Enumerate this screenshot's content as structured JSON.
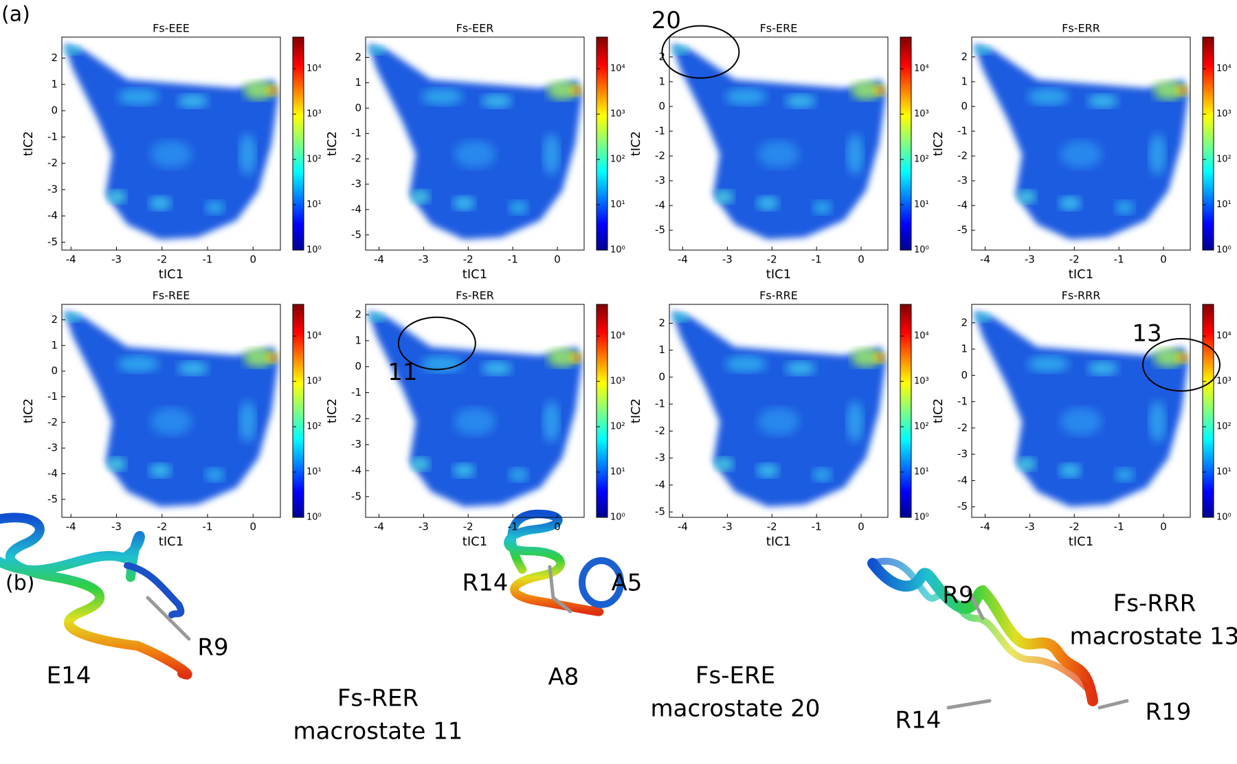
{
  "panel_labels": [
    "(a)",
    "(b)"
  ],
  "chart_data": [
    {
      "type": "hist2d",
      "title": "Fs-EEE",
      "xlabel": "tIC1",
      "ylabel": "tIC2",
      "xlim": [
        -4.2,
        0.6
      ],
      "ylim": [
        -5.3,
        2.8
      ],
      "xticks": [
        -4,
        -3,
        -2,
        -1,
        0
      ],
      "yticks": [
        -5,
        -4,
        -3,
        -2,
        -1,
        0,
        1,
        2
      ],
      "colorbar": {
        "scale": "log",
        "clim": [
          1,
          50000
        ],
        "ticks": [
          {
            "value": 1,
            "label": "10⁰"
          },
          {
            "value": 10,
            "label": "10¹"
          },
          {
            "value": 100,
            "label": "10²"
          },
          {
            "value": 1000,
            "label": "10³"
          },
          {
            "value": 10000,
            "label": "10⁴"
          }
        ]
      }
    },
    {
      "type": "hist2d",
      "title": "Fs-EER",
      "xlabel": "tIC1",
      "ylabel": "tIC2",
      "xlim": [
        -4.3,
        0.6
      ],
      "ylim": [
        -5.6,
        2.8
      ],
      "xticks": [
        -4,
        -3,
        -2,
        -1,
        0
      ],
      "yticks": [
        -5,
        -4,
        -3,
        -2,
        -1,
        0,
        1,
        2
      ],
      "colorbar": {
        "scale": "log",
        "clim": [
          1,
          50000
        ],
        "ticks": [
          {
            "value": 1,
            "label": "10⁰"
          },
          {
            "value": 10,
            "label": "10¹"
          },
          {
            "value": 100,
            "label": "10²"
          },
          {
            "value": 1000,
            "label": "10³"
          },
          {
            "value": 10000,
            "label": "10⁴"
          }
        ]
      }
    },
    {
      "type": "hist2d",
      "title": "Fs-ERE",
      "xlabel": "tIC1",
      "ylabel": "tIC2",
      "xlim": [
        -4.3,
        0.6
      ],
      "ylim": [
        -5.8,
        2.8
      ],
      "xticks": [
        -4,
        -3,
        -2,
        -1,
        0
      ],
      "yticks": [
        -5,
        -4,
        -3,
        -2,
        -1,
        0,
        1,
        2
      ],
      "colorbar": {
        "scale": "log",
        "clim": [
          1,
          50000
        ],
        "ticks": [
          {
            "value": 1,
            "label": "10⁰"
          },
          {
            "value": 10,
            "label": "10¹"
          },
          {
            "value": 100,
            "label": "10²"
          },
          {
            "value": 1000,
            "label": "10³"
          },
          {
            "value": 10000,
            "label": "10⁴"
          }
        ]
      },
      "annotation": {
        "text": "20",
        "x": -3.6,
        "y": 2.2,
        "side": "upper-left"
      }
    },
    {
      "type": "hist2d",
      "title": "Fs-ERR",
      "xlabel": "tIC1",
      "ylabel": "tIC2",
      "xlim": [
        -4.3,
        0.6
      ],
      "ylim": [
        -5.8,
        2.8
      ],
      "xticks": [
        -4,
        -3,
        -2,
        -1,
        0
      ],
      "yticks": [
        -5,
        -4,
        -3,
        -2,
        -1,
        0,
        1,
        2
      ],
      "colorbar": {
        "scale": "log",
        "clim": [
          1,
          50000
        ],
        "ticks": [
          {
            "value": 1,
            "label": "10⁰"
          },
          {
            "value": 10,
            "label": "10¹"
          },
          {
            "value": 100,
            "label": "10²"
          },
          {
            "value": 1000,
            "label": "10³"
          },
          {
            "value": 10000,
            "label": "10⁴"
          }
        ]
      }
    },
    {
      "type": "hist2d",
      "title": "Fs-REE",
      "xlabel": "tIC1",
      "ylabel": "tIC2",
      "xlim": [
        -4.2,
        0.6
      ],
      "ylim": [
        -5.7,
        2.6
      ],
      "xticks": [
        -4,
        -3,
        -2,
        -1,
        0
      ],
      "yticks": [
        -5,
        -4,
        -3,
        -2,
        -1,
        0,
        1,
        2
      ],
      "colorbar": {
        "scale": "log",
        "clim": [
          1,
          50000
        ],
        "ticks": [
          {
            "value": 1,
            "label": "10⁰"
          },
          {
            "value": 10,
            "label": "10¹"
          },
          {
            "value": 100,
            "label": "10²"
          },
          {
            "value": 1000,
            "label": "10³"
          },
          {
            "value": 10000,
            "label": "10⁴"
          }
        ]
      }
    },
    {
      "type": "hist2d",
      "title": "Fs-RER",
      "xlabel": "tIC1",
      "ylabel": "tIC2",
      "xlim": [
        -4.3,
        0.6
      ],
      "ylim": [
        -5.8,
        2.4
      ],
      "xticks": [
        -4,
        -3,
        -2,
        -1,
        0
      ],
      "yticks": [
        -5,
        -4,
        -3,
        -2,
        -1,
        0,
        1,
        2
      ],
      "colorbar": {
        "scale": "log",
        "clim": [
          1,
          50000
        ],
        "ticks": [
          {
            "value": 1,
            "label": "10⁰"
          },
          {
            "value": 10,
            "label": "10¹"
          },
          {
            "value": 100,
            "label": "10²"
          },
          {
            "value": 1000,
            "label": "10³"
          },
          {
            "value": 10000,
            "label": "10⁴"
          }
        ]
      },
      "annotation": {
        "text": "11",
        "x": -2.7,
        "y": 0.9,
        "side": "lower-left"
      }
    },
    {
      "type": "hist2d",
      "title": "Fs-RRE",
      "xlabel": "tIC1",
      "ylabel": "tIC2",
      "xlim": [
        -4.3,
        0.6
      ],
      "ylim": [
        -5.2,
        2.7
      ],
      "xticks": [
        -4,
        -3,
        -2,
        -1,
        0
      ],
      "yticks": [
        -5,
        -4,
        -3,
        -2,
        -1,
        0,
        1,
        2
      ],
      "colorbar": {
        "scale": "log",
        "clim": [
          1,
          50000
        ],
        "ticks": [
          {
            "value": 1,
            "label": "10⁰"
          },
          {
            "value": 10,
            "label": "10¹"
          },
          {
            "value": 100,
            "label": "10²"
          },
          {
            "value": 1000,
            "label": "10³"
          },
          {
            "value": 10000,
            "label": "10⁴"
          }
        ]
      }
    },
    {
      "type": "hist2d",
      "title": "Fs-RRR",
      "xlabel": "tIC1",
      "ylabel": "tIC2",
      "xlim": [
        -4.3,
        0.6
      ],
      "ylim": [
        -5.4,
        2.7
      ],
      "xticks": [
        -4,
        -3,
        -2,
        -1,
        0
      ],
      "yticks": [
        -5,
        -4,
        -3,
        -2,
        -1,
        0,
        1,
        2
      ],
      "colorbar": {
        "scale": "log",
        "clim": [
          1,
          50000
        ],
        "ticks": [
          {
            "value": 1,
            "label": "10⁰"
          },
          {
            "value": 10,
            "label": "10¹"
          },
          {
            "value": 100,
            "label": "10²"
          },
          {
            "value": 1000,
            "label": "10³"
          },
          {
            "value": 10000,
            "label": "10⁴"
          }
        ]
      },
      "annotation": {
        "text": "13",
        "x": 0.4,
        "y": 0.4,
        "side": "upper-left"
      }
    }
  ],
  "structures": [
    {
      "title": "Fs-RER",
      "subtitle": "macrostate 11",
      "residues": [
        "E14",
        "R9"
      ]
    },
    {
      "title": "Fs-ERE",
      "subtitle": "macrostate 20",
      "residues": [
        "R14",
        "A5",
        "A8"
      ]
    },
    {
      "title": "Fs-RRR",
      "subtitle": "macrostate 13",
      "residues": [
        "R9",
        "R14",
        "R19"
      ]
    }
  ]
}
